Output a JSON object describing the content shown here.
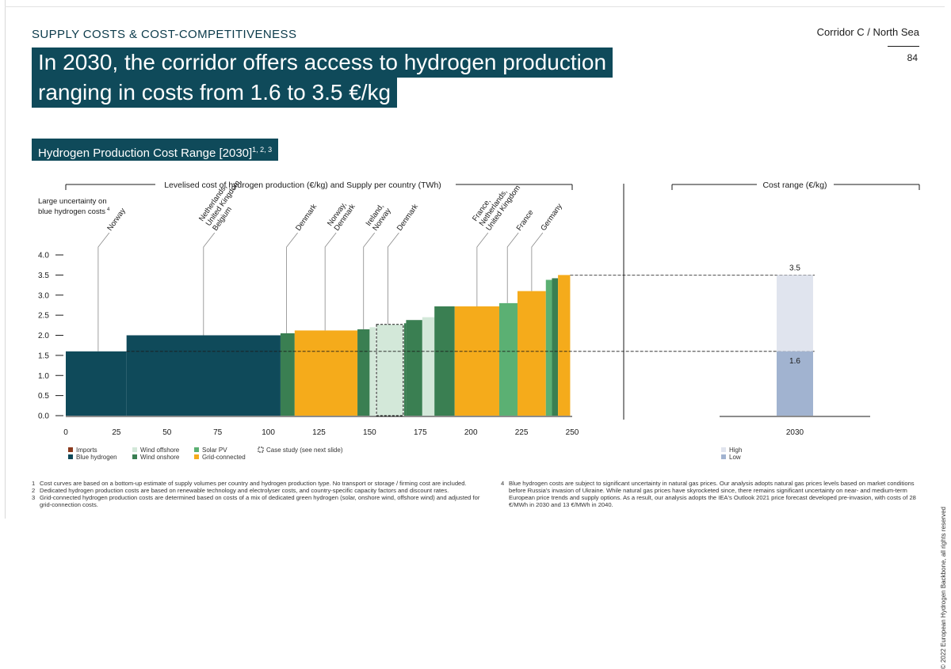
{
  "header": {
    "section_title": "SUPPLY COSTS & COST-COMPETITIVENESS",
    "corridor": "Corridor C / North Sea",
    "page_number": "84",
    "headline_line1": "In 2030, the corridor offers access to hydrogen production",
    "headline_line2": "ranging in costs from 1.6 to 3.5 €/kg",
    "chart_title": "Hydrogen Production Cost Range [2030]",
    "chart_title_refs": "1, 2, 3"
  },
  "copyright": "© 2022 European Hydrogen Backbone, all rights reserved",
  "chart_data": [
    {
      "type": "bar",
      "subtype": "supply-cost-curve",
      "title": "Levelised cost of hydrogen production (€/kg) and Supply per country (TWh)",
      "ylabel_note": "Large uncertainty on blue hydrogen costs",
      "ylabel_note_ref": "4",
      "xlim": [
        0,
        250
      ],
      "ylim": [
        0,
        4.0
      ],
      "x_ticks": [
        "0",
        "25",
        "50",
        "75",
        "100",
        "125",
        "150",
        "175",
        "200",
        "225",
        "250"
      ],
      "y_ticks": [
        "0.0",
        "0.5",
        "1.0",
        "1.5",
        "2.0",
        "2.5",
        "3.0",
        "3.5",
        "4.0"
      ],
      "grid": false,
      "colors": {
        "imports": "#8b3a1e",
        "blue": "#0f4a5a",
        "wind_offshore": "#d3e8d9",
        "wind_onshore": "#3a7f52",
        "solar_pv": "#5bb073",
        "grid_connected": "#f5ab1b",
        "high": "#e0e4ee",
        "low": "#a1b3d0"
      },
      "segments": [
        {
          "x0": 0,
          "x1": 30,
          "value": 1.6,
          "type": "blue"
        },
        {
          "x0": 30,
          "x1": 106,
          "value": 2.0,
          "type": "blue"
        },
        {
          "x0": 106,
          "x1": 113,
          "value": 2.05,
          "type": "wind_onshore"
        },
        {
          "x0": 113,
          "x1": 144,
          "value": 2.12,
          "type": "grid_connected"
        },
        {
          "x0": 144,
          "x1": 150,
          "value": 2.15,
          "type": "wind_onshore"
        },
        {
          "x0": 150,
          "x1": 153,
          "value": 2.2,
          "type": "wind_offshore"
        },
        {
          "x0": 153,
          "x1": 167,
          "value": 2.27,
          "type": "case_study"
        },
        {
          "x0": 167,
          "x1": 168,
          "value": 2.3,
          "type": "wind_onshore"
        },
        {
          "x0": 168,
          "x1": 176,
          "value": 2.38,
          "type": "wind_onshore"
        },
        {
          "x0": 176,
          "x1": 182,
          "value": 2.45,
          "type": "wind_offshore"
        },
        {
          "x0": 182,
          "x1": 192,
          "value": 2.72,
          "type": "wind_onshore"
        },
        {
          "x0": 192,
          "x1": 214,
          "value": 2.72,
          "type": "grid_connected"
        },
        {
          "x0": 214,
          "x1": 223,
          "value": 2.8,
          "type": "solar_pv"
        },
        {
          "x0": 223,
          "x1": 237,
          "value": 3.1,
          "type": "grid_connected"
        },
        {
          "x0": 237,
          "x1": 240,
          "value": 3.38,
          "type": "solar_pv"
        },
        {
          "x0": 240,
          "x1": 243,
          "value": 3.42,
          "type": "wind_onshore"
        },
        {
          "x0": 243,
          "x1": 249,
          "value": 3.5,
          "type": "grid_connected"
        }
      ],
      "annotations": [
        {
          "label": "Norway",
          "x": 16,
          "y": 1.6
        },
        {
          "label": "Netherlands,\nUnited Kingdom,\nBelgium",
          "x": 68,
          "y": 2.0
        },
        {
          "label": "Denmark",
          "x": 109,
          "y": 2.05
        },
        {
          "label": "Norway,\nDenmark",
          "x": 128,
          "y": 2.12
        },
        {
          "label": "Ireland,\nNorway",
          "x": 147,
          "y": 2.15
        },
        {
          "label": "Denmark",
          "x": 159,
          "y": 2.27
        },
        {
          "label": "France,\nNetherlands,\nUnited Kingdom",
          "x": 203,
          "y": 2.72
        },
        {
          "label": "France",
          "x": 218,
          "y": 2.8
        },
        {
          "label": "Germany",
          "x": 230,
          "y": 3.1
        }
      ],
      "legend": [
        {
          "label": "Imports",
          "type": "imports"
        },
        {
          "label": "Blue hydrogen",
          "type": "blue"
        },
        {
          "label": "Wind offshore",
          "type": "wind_offshore"
        },
        {
          "label": "Wind onshore",
          "type": "wind_onshore"
        },
        {
          "label": "Solar PV",
          "type": "solar_pv"
        },
        {
          "label": "Grid-connected",
          "type": "grid_connected"
        },
        {
          "label": "Case study (see next slide)",
          "type": "case_study"
        }
      ],
      "legend_position": "bottom"
    },
    {
      "type": "bar",
      "subtype": "range",
      "title": "Cost range (€/kg)",
      "categories": [
        "2030"
      ],
      "low": 1.6,
      "high": 3.5,
      "low_label": "1.6",
      "high_label": "3.5",
      "ylim": [
        0,
        4.0
      ],
      "legend": [
        {
          "label": "High",
          "type": "high"
        },
        {
          "label": "Low",
          "type": "low"
        }
      ],
      "legend_position": "bottom"
    }
  ],
  "footnotes_left": [
    {
      "num": "1",
      "text": "Cost curves are based on a bottom-up estimate of supply volumes per country and hydrogen production type. No transport or storage / firming cost are included."
    },
    {
      "num": "2",
      "text": "Dedicated hydrogen production costs are based on renewable technology and electrolyser costs, and country-specific capacity factors and discount rates."
    },
    {
      "num": "3",
      "text": "Grid-connected hydrogen production costs are determined based on costs of a mix of dedicated green hydrogen (solar, onshore wind, offshore wind) and adjusted for grid-connection costs."
    }
  ],
  "footnotes_right": [
    {
      "num": "4",
      "text": "Blue hydrogen costs are subject to significant uncertainty in natural gas prices. Our analysis adopts natural gas prices levels based on market conditions before Russia's invasion of Ukraine. While natural gas prices have skyrocketed since, there remains significant uncertainty on near- and medium-term European price trends and supply options. As a result, our analysis adopts the IEA's Outlook 2021 price forecast developed pre-invasion, with costs of 28 €/MWh in 2030 and 13 €/MWh in 2040."
    }
  ]
}
